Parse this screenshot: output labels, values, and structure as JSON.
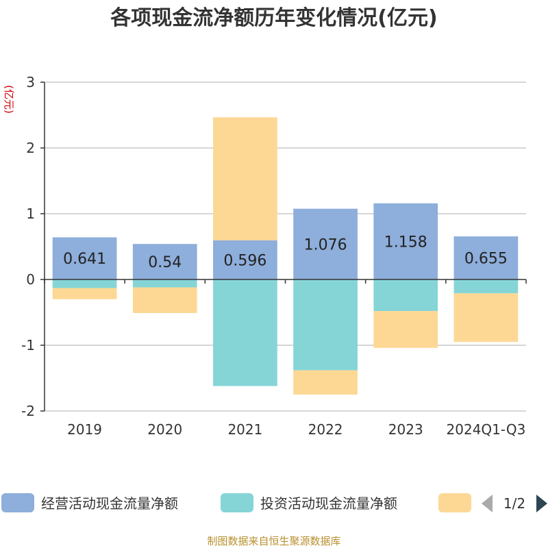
{
  "chart_data": {
    "type": "bar",
    "stacked": true,
    "title": "各项现金流净额历年变化情况(亿元)",
    "ylabel": "(亿元)",
    "xlabel": "",
    "ylim": [
      -2,
      3
    ],
    "yticks": [
      -2,
      -1,
      0,
      1,
      2,
      3
    ],
    "categories": [
      "2019",
      "2020",
      "2021",
      "2022",
      "2023",
      "2024Q1-Q3"
    ],
    "series": [
      {
        "name": "经营活动现金流量净额",
        "color": "#8eaedb",
        "values": [
          0.641,
          0.54,
          0.596,
          1.076,
          1.158,
          0.655
        ],
        "labels": [
          "0.641",
          "0.54",
          "0.596",
          "1.076",
          "1.158",
          "0.655"
        ]
      },
      {
        "name": "投资活动现金流量净额",
        "color": "#85d5d7",
        "values": [
          -0.13,
          -0.12,
          -1.62,
          -1.38,
          -0.48,
          -0.21
        ]
      },
      {
        "name": "",
        "color": "#fdd895",
        "values": [
          -0.17,
          -0.39,
          1.87,
          -0.37,
          -0.56,
          -0.74
        ]
      }
    ],
    "legend": {
      "position": "bottom",
      "page": "1/2"
    },
    "source": "制图数据来自恒生聚源数据库"
  }
}
